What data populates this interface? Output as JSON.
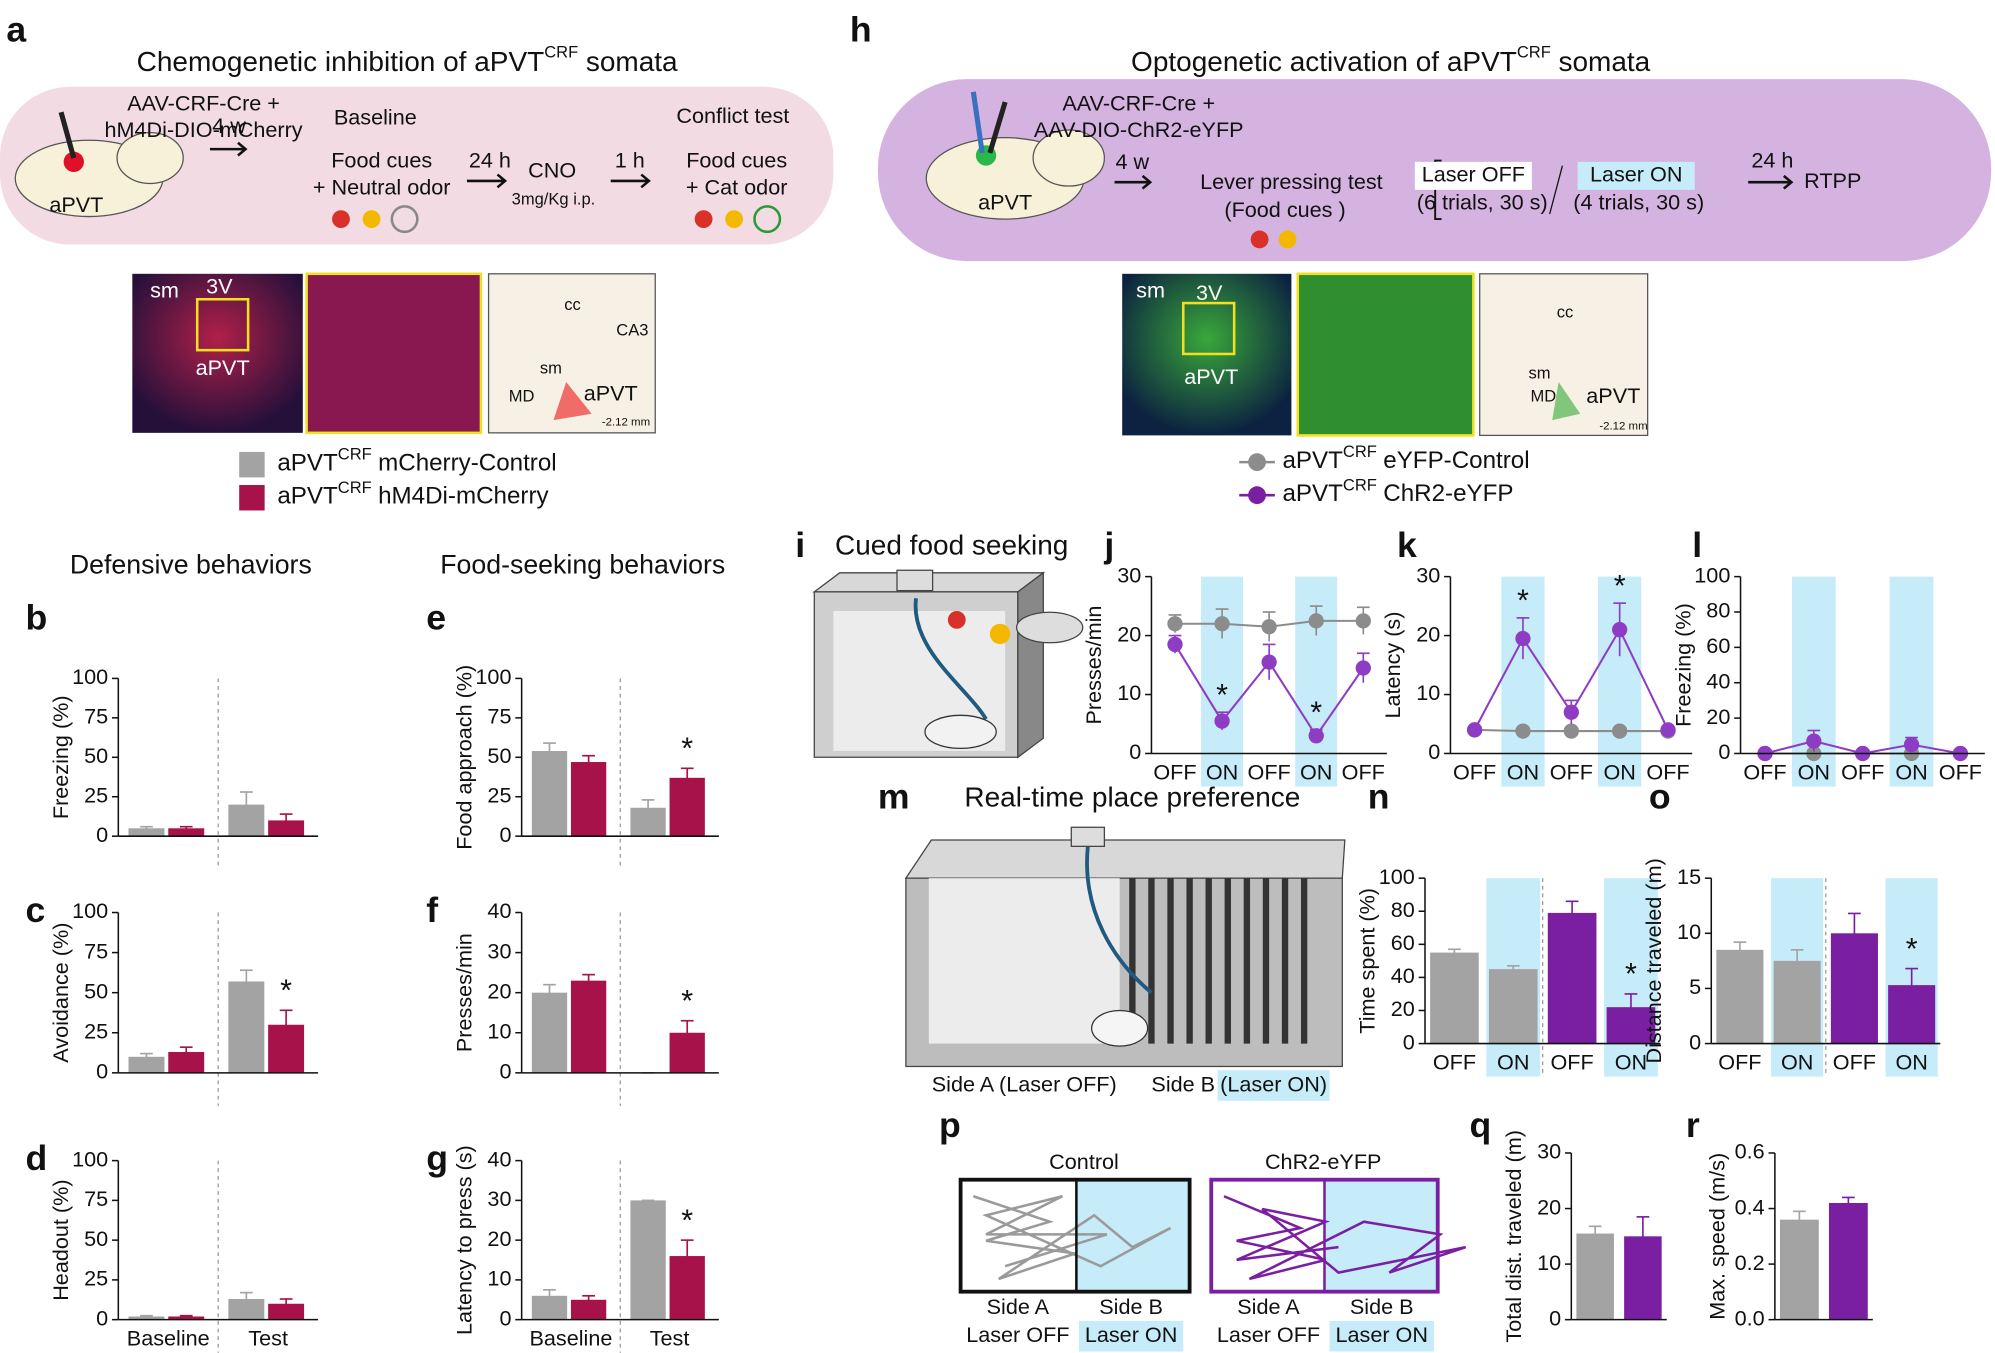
{
  "panel_a": {
    "label": "a",
    "title": "Chemogenetic inhibition of aPVT",
    "title_sup": "CRF",
    "title_end": "somata",
    "virus_1": "AAV-CRF-Cre +",
    "virus_2": "hM4Di-DIO-mCherry",
    "region": "aPVT",
    "wait": "4 w",
    "baseline": "Baseline",
    "baseline_1": "Food cues",
    "baseline_2": "+ Neutral odor",
    "delay": "24 h",
    "drug": "CNO",
    "dose": "3mg/Kg i.p.",
    "delay_2": "1 h",
    "test": "Conflict test",
    "test_1": "Food cues",
    "test_2": "+ Cat odor",
    "histology": [
      "sm",
      "3V",
      "aPVT"
    ],
    "atlas": [
      "cc",
      "CA3",
      "sm",
      "MD",
      "aPVT",
      "-2.12 mm"
    ],
    "legend": [
      {
        "name": "aPVT",
        "sup": "CRF",
        "rest": "mCherry-Control",
        "color": "#a3a3a3"
      },
      {
        "name": "aPVT",
        "sup": "CRF",
        "rest": "hM4Di-mCherry",
        "color": "#a8124a"
      }
    ]
  },
  "panel_h": {
    "label": "h",
    "title": "Optogenetic activation of aPVT",
    "title_sup": "CRF",
    "title_end": "somata",
    "virus_1": "AAV-CRF-Cre +",
    "virus_2": "AAV-DIO-ChR2-eYFP",
    "region": "aPVT",
    "wait": "4 w",
    "test": "Lever pressing test",
    "test_1": "(Food cues )",
    "laser_off": "Laser OFF",
    "off_trials": "(6 trials, 30 s)",
    "laser_on": "Laser ON",
    "on_trials": "(4 trials, 30 s)",
    "delay": "24 h",
    "rtpp": "RTPP",
    "histology": [
      "sm",
      "3V",
      "aPVT"
    ],
    "atlas": [
      "cc",
      "sm",
      "MD",
      "aPVT",
      "-2.12 mm"
    ],
    "legend": [
      {
        "name": "aPVT",
        "sup": "CRF",
        "rest": "eYFP-Control",
        "color": "#8c8c8c"
      },
      {
        "name": "aPVT",
        "sup": "CRF",
        "rest": "ChR2-eYFP",
        "color": "#7b1fa2"
      }
    ]
  },
  "headings": {
    "defensive": "Defensive behaviors",
    "food": "Food-seeking behaviors"
  },
  "panel_i": {
    "label": "i",
    "title": "Cued food seeking"
  },
  "panel_m": {
    "label": "m",
    "title": "Real-time place preference",
    "side_a": "Side A (Laser OFF)",
    "side_b": "Side B",
    "side_b_2": "(Laser ON)"
  },
  "panel_p": {
    "label": "p",
    "control": "Control",
    "chr2": "ChR2-eYFP",
    "side_a": "Side A",
    "laser_off": "Laser OFF",
    "side_b": "Side B",
    "laser_on": "Laser ON"
  },
  "chart_data": [
    {
      "type": "bar",
      "panel": "b",
      "ylabel": "Freezing (%)",
      "categories": [
        null,
        null
      ],
      "ylim": [
        0,
        100
      ],
      "yticks": [
        0,
        25,
        50,
        75,
        100
      ],
      "divider": true,
      "series": [
        {
          "color": "#a3a3a3",
          "values": [
            5,
            20
          ],
          "errors": [
            1,
            8
          ]
        },
        {
          "color": "#a8124a",
          "values": [
            5,
            10
          ],
          "errors": [
            1,
            4
          ]
        }
      ]
    },
    {
      "type": "bar",
      "panel": "c",
      "ylabel": "Avoidance (%)",
      "categories": [
        null,
        null
      ],
      "ylim": [
        0,
        100
      ],
      "yticks": [
        0,
        25,
        50,
        75,
        100
      ],
      "divider": true,
      "series": [
        {
          "color": "#a3a3a3",
          "values": [
            10,
            57
          ],
          "errors": [
            2,
            7
          ]
        },
        {
          "color": "#a8124a",
          "values": [
            13,
            30
          ],
          "errors": [
            3,
            9
          ],
          "stars": [
            null,
            "*"
          ]
        }
      ]
    },
    {
      "type": "bar",
      "panel": "d",
      "ylabel": "Headout (%)",
      "categories": [
        "Baseline",
        "Test"
      ],
      "ylim": [
        0,
        100
      ],
      "yticks": [
        0,
        25,
        50,
        75,
        100
      ],
      "divider": true,
      "series": [
        {
          "color": "#a3a3a3",
          "values": [
            2,
            13
          ],
          "errors": [
            0.5,
            4
          ]
        },
        {
          "color": "#a8124a",
          "values": [
            2,
            10
          ],
          "errors": [
            0.5,
            3
          ]
        }
      ]
    },
    {
      "type": "bar",
      "panel": "e",
      "ylabel": "Food approach (%)",
      "categories": [
        null,
        null
      ],
      "ylim": [
        0,
        100
      ],
      "yticks": [
        0,
        25,
        50,
        75,
        100
      ],
      "divider": true,
      "series": [
        {
          "color": "#a3a3a3",
          "values": [
            54,
            18
          ],
          "errors": [
            5,
            5
          ]
        },
        {
          "color": "#a8124a",
          "values": [
            47,
            37
          ],
          "errors": [
            4,
            6
          ],
          "stars": [
            null,
            "*"
          ]
        }
      ]
    },
    {
      "type": "bar",
      "panel": "f",
      "ylabel": "Presses/min",
      "categories": [
        null,
        null
      ],
      "ylim": [
        0,
        40
      ],
      "yticks": [
        0,
        10,
        20,
        30,
        40
      ],
      "divider": true,
      "series": [
        {
          "color": "#a3a3a3",
          "values": [
            20,
            0
          ],
          "errors": [
            2,
            0
          ]
        },
        {
          "color": "#a8124a",
          "values": [
            23,
            10
          ],
          "errors": [
            1.5,
            3
          ],
          "stars": [
            null,
            "*"
          ]
        }
      ]
    },
    {
      "type": "bar",
      "panel": "g",
      "ylabel": "Latency to press (s)",
      "categories": [
        "Baseline",
        "Test"
      ],
      "ylim": [
        0,
        40
      ],
      "yticks": [
        0,
        10,
        20,
        30,
        40
      ],
      "divider": true,
      "series": [
        {
          "color": "#a3a3a3",
          "values": [
            6,
            30
          ],
          "errors": [
            1.5,
            0
          ]
        },
        {
          "color": "#a8124a",
          "values": [
            5,
            16
          ],
          "errors": [
            1,
            4
          ],
          "stars": [
            null,
            "*"
          ]
        }
      ]
    },
    {
      "type": "line",
      "panel": "j",
      "ylabel": "Presses/min",
      "categories": [
        "OFF",
        "ON",
        "OFF",
        "ON",
        "OFF"
      ],
      "ylim": [
        0,
        30
      ],
      "yticks": [
        0,
        10,
        20,
        30
      ],
      "highlight": [
        false,
        true,
        false,
        true,
        false
      ],
      "highlight_color": "#c6ecfa",
      "series": [
        {
          "color": "#8c8c8c",
          "values": [
            22,
            22,
            21.5,
            22.5,
            22.5
          ],
          "errors": [
            1.5,
            2.5,
            2.5,
            2.5,
            2.3
          ]
        },
        {
          "color": "#8e3cc4",
          "values": [
            18.5,
            5.5,
            15.5,
            3,
            14.5
          ],
          "errors": [
            1.5,
            1.5,
            3,
            1,
            2.5
          ],
          "stars": [
            null,
            "*",
            null,
            "*",
            null
          ]
        }
      ]
    },
    {
      "type": "line",
      "panel": "k",
      "ylabel": "Latency (s)",
      "categories": [
        "OFF",
        "ON",
        "OFF",
        "ON",
        "OFF"
      ],
      "ylim": [
        0,
        30
      ],
      "yticks": [
        0,
        10,
        20,
        30
      ],
      "highlight": [
        false,
        true,
        false,
        true,
        false
      ],
      "highlight_color": "#c6ecfa",
      "series": [
        {
          "color": "#8c8c8c",
          "values": [
            4,
            3.8,
            3.8,
            3.8,
            3.8
          ],
          "errors": [
            0.5,
            0.3,
            0.3,
            0.5,
            0.3
          ]
        },
        {
          "color": "#8e3cc4",
          "values": [
            4,
            19.5,
            7,
            21,
            4
          ],
          "errors": [
            0.5,
            3.5,
            2,
            4.5,
            0.5
          ],
          "stars": [
            null,
            "*",
            null,
            "*",
            null
          ]
        }
      ]
    },
    {
      "type": "line",
      "panel": "l",
      "ylabel": "Freezing (%)",
      "categories": [
        "OFF",
        "ON",
        "OFF",
        "ON",
        "OFF"
      ],
      "ylim": [
        0,
        100
      ],
      "yticks": [
        0,
        20,
        40,
        60,
        80,
        100
      ],
      "highlight": [
        false,
        true,
        false,
        true,
        false
      ],
      "highlight_color": "#c6ecfa",
      "series": [
        {
          "color": "#8c8c8c",
          "values": [
            0,
            0,
            0,
            0,
            0
          ],
          "errors": [
            0,
            0,
            0,
            0,
            0
          ]
        },
        {
          "color": "#8e3cc4",
          "values": [
            0,
            7,
            0,
            5,
            0
          ],
          "errors": [
            0.5,
            6,
            1,
            4,
            0.5
          ]
        }
      ]
    },
    {
      "type": "bar",
      "panel": "n",
      "ylabel": "Time spent (%)",
      "categories": [
        "OFF",
        "ON",
        "OFF",
        "ON"
      ],
      "ylim": [
        0,
        100
      ],
      "yticks": [
        0,
        20,
        40,
        60,
        80,
        100
      ],
      "divider": true,
      "highlight": [
        false,
        true,
        false,
        true
      ],
      "highlight_color": "#c6ecfa",
      "values": [
        55,
        45,
        79,
        22
      ],
      "errors": [
        2,
        2,
        7,
        8
      ],
      "colors": [
        "#a3a3a3",
        "#a3a3a3",
        "#7b1fa2",
        "#7b1fa2"
      ],
      "stars": [
        null,
        null,
        null,
        "*"
      ]
    },
    {
      "type": "bar",
      "panel": "o",
      "ylabel": "Distance traveled (m)",
      "categories": [
        "OFF",
        "ON",
        "OFF",
        "ON"
      ],
      "ylim": [
        0,
        15
      ],
      "yticks": [
        0,
        5,
        10,
        15
      ],
      "divider": true,
      "highlight": [
        false,
        true,
        false,
        true
      ],
      "highlight_color": "#c6ecfa",
      "values": [
        8.5,
        7.5,
        10,
        5.3
      ],
      "errors": [
        0.7,
        1,
        1.8,
        1.5
      ],
      "colors": [
        "#a3a3a3",
        "#a3a3a3",
        "#7b1fa2",
        "#7b1fa2"
      ],
      "stars": [
        null,
        null,
        null,
        "*"
      ]
    },
    {
      "type": "bar",
      "panel": "q",
      "ylabel": "Total dist. traveled (m)",
      "ylim": [
        0,
        30
      ],
      "yticks": [
        0,
        10,
        20,
        30
      ],
      "values": [
        15.5,
        15
      ],
      "errors": [
        1.3,
        3.5
      ],
      "colors": [
        "#a3a3a3",
        "#7b1fa2"
      ]
    },
    {
      "type": "bar",
      "panel": "r",
      "ylabel": "Max. speed (m/s)",
      "ylim": [
        0,
        0.6
      ],
      "yticks": [
        {
          "value": 0,
          "label": "0.0"
        },
        0.2,
        0.4,
        0.6
      ],
      "values": [
        0.36,
        0.42
      ],
      "errors": [
        0.03,
        0.02
      ],
      "colors": [
        "#a3a3a3",
        "#7b1fa2"
      ]
    }
  ]
}
